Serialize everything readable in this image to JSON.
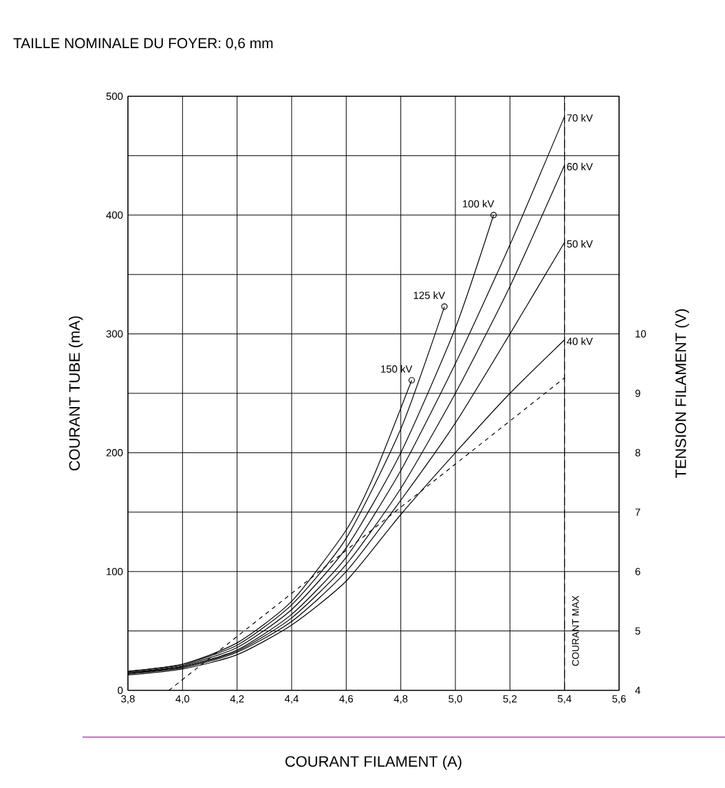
{
  "chart_data": {
    "type": "line",
    "title": "TAILLE NOMINALE DU FOYER: 0,6 mm",
    "xlabel": "COURANT FILAMENT (A)",
    "ylabel": "COURANT TUBE (mA)",
    "y2label": "TENSION FILAMENT (V)",
    "xlim": [
      3.8,
      5.6
    ],
    "xticks": [
      {
        "value": 3.8,
        "label": "3,8"
      },
      {
        "value": 4.0,
        "label": "4,0"
      },
      {
        "value": 4.2,
        "label": "4,2"
      },
      {
        "value": 4.4,
        "label": "4,4"
      },
      {
        "value": 4.6,
        "label": "4,6"
      },
      {
        "value": 4.8,
        "label": "4,8"
      },
      {
        "value": 5.0,
        "label": "5,0"
      },
      {
        "value": 5.2,
        "label": "5,2"
      },
      {
        "value": 5.4,
        "label": "5,4"
      },
      {
        "value": 5.6,
        "label": "5,6"
      }
    ],
    "ylim": [
      0,
      500
    ],
    "yticks": [
      0,
      100,
      200,
      300,
      400,
      500
    ],
    "y2lim": [
      4,
      14
    ],
    "y2ticks": [
      4,
      5,
      6,
      7,
      8,
      9,
      10
    ],
    "grid": true,
    "series": [
      {
        "name": "150 kV",
        "color": "#000000",
        "x": [
          3.8,
          4.0,
          4.2,
          4.4,
          4.6,
          4.7,
          4.84
        ],
        "values": [
          16,
          22,
          40,
          75,
          135,
          180,
          261
        ]
      },
      {
        "name": "125 kV",
        "color": "#000000",
        "x": [
          3.8,
          4.0,
          4.2,
          4.4,
          4.6,
          4.8,
          4.96
        ],
        "values": [
          16,
          22,
          38,
          72,
          128,
          220,
          323
        ]
      },
      {
        "name": "100 kV",
        "color": "#000000",
        "x": [
          3.8,
          4.0,
          4.2,
          4.4,
          4.6,
          4.8,
          5.0,
          5.14
        ],
        "values": [
          15,
          21,
          36,
          68,
          120,
          200,
          305,
          400
        ]
      },
      {
        "name": "70 kV",
        "color": "#000000",
        "x": [
          3.8,
          4.0,
          4.2,
          4.4,
          4.6,
          4.8,
          5.0,
          5.2,
          5.4
        ],
        "values": [
          15,
          20,
          34,
          64,
          112,
          185,
          275,
          375,
          483
        ]
      },
      {
        "name": "60 kV",
        "color": "#000000",
        "x": [
          3.8,
          4.0,
          4.2,
          4.4,
          4.6,
          4.8,
          5.0,
          5.2,
          5.4
        ],
        "values": [
          14,
          20,
          33,
          61,
          106,
          170,
          250,
          340,
          442
        ]
      },
      {
        "name": "50 kV",
        "color": "#000000",
        "x": [
          3.8,
          4.0,
          4.2,
          4.4,
          4.6,
          4.8,
          5.0,
          5.2,
          5.4
        ],
        "values": [
          14,
          19,
          32,
          58,
          100,
          160,
          225,
          300,
          377
        ]
      },
      {
        "name": "40 kV",
        "color": "#000000",
        "x": [
          3.8,
          4.0,
          4.2,
          4.4,
          4.6,
          4.8,
          5.0,
          5.2,
          5.4
        ],
        "values": [
          13,
          18,
          30,
          55,
          92,
          148,
          200,
          250,
          295
        ]
      },
      {
        "type": "scatter",
        "color": "#000000",
        "marker": "circle",
        "x": [
          4.84,
          4.96,
          5.14
        ],
        "values": [
          261,
          323,
          400
        ]
      },
      {
        "color": "#000000",
        "axis": "y2",
        "line_style": "dashed",
        "x": [
          3.95,
          5.4
        ],
        "values": [
          4,
          9.26
        ]
      }
    ],
    "ref_lines": [
      {
        "axis": "x",
        "value": 5.4,
        "label": "COURANT MAX",
        "line_style": "dashed"
      }
    ]
  }
}
